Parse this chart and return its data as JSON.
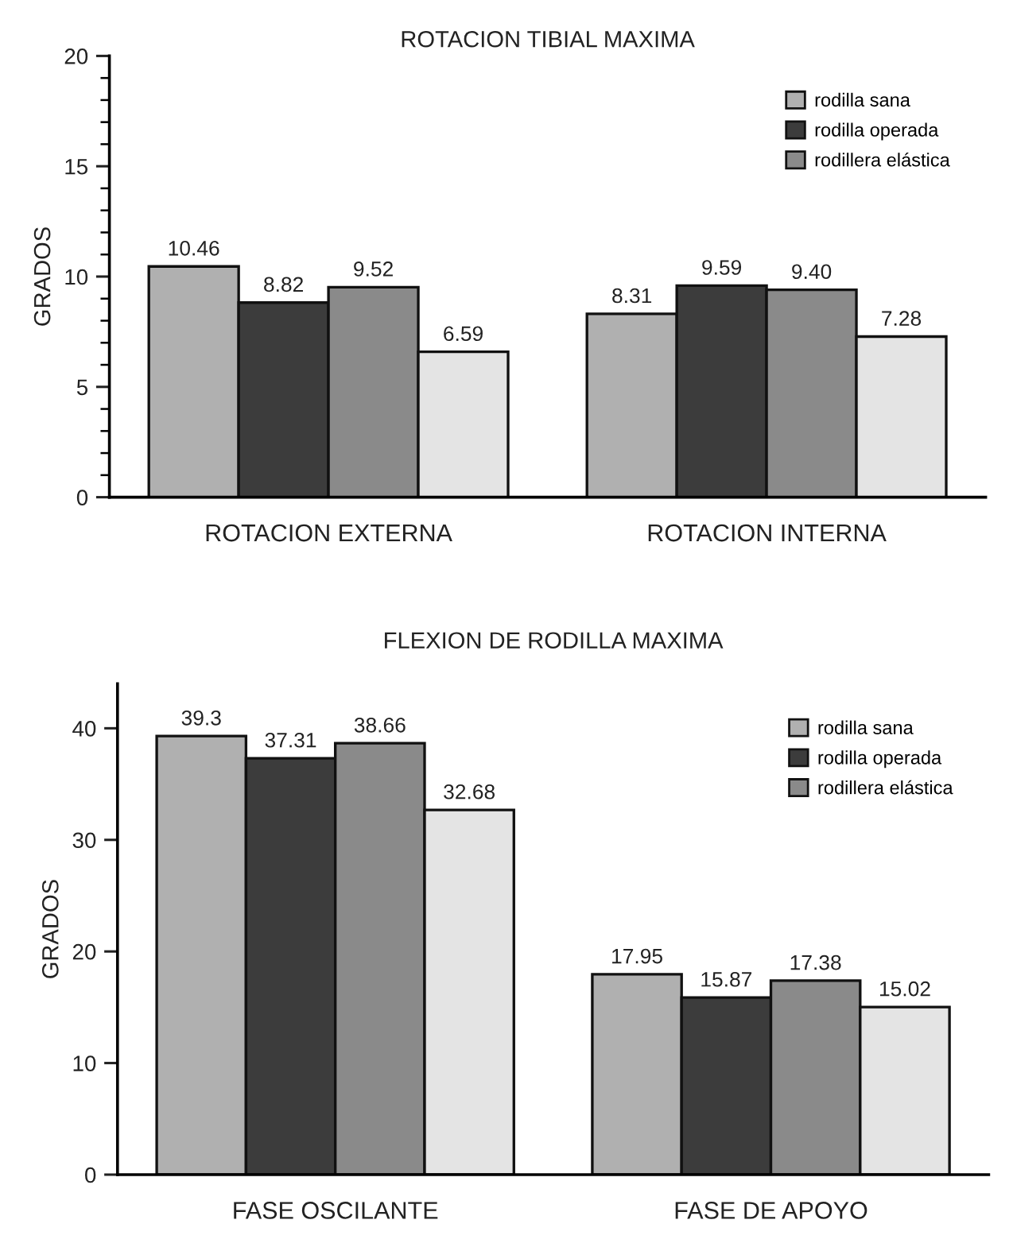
{
  "chart_data": [
    {
      "type": "bar",
      "title": "ROTACION TIBIAL MAXIMA",
      "ylabel": "GRADOS",
      "categories": [
        "ROTACION EXTERNA",
        "ROTACION INTERNA"
      ],
      "series": [
        {
          "name": "rodilla sana",
          "color": "#b0b0b0",
          "values": [
            10.46,
            8.31
          ],
          "value_labels": [
            "10.46",
            "8.31"
          ]
        },
        {
          "name": "rodilla operada",
          "color": "#3c3c3c",
          "values": [
            8.82,
            9.59
          ],
          "value_labels": [
            "8.82",
            "9.59"
          ]
        },
        {
          "name": "rodillera elástica",
          "color": "#8a8a8a",
          "values": [
            9.52,
            9.4
          ],
          "value_labels": [
            "9.52",
            "9.40"
          ]
        },
        {
          "color": "#e4e4e4",
          "values": [
            6.59,
            7.28
          ],
          "value_labels": [
            "6.59",
            "7.28"
          ]
        }
      ],
      "ylim": [
        0,
        20
      ],
      "yticks": [
        0,
        {
          "value": 1,
          "label": null
        },
        {
          "value": 2,
          "label": null
        },
        {
          "value": 3,
          "label": null
        },
        {
          "value": 4,
          "label": null
        },
        5,
        {
          "value": 6,
          "label": null
        },
        {
          "value": 7,
          "label": null
        },
        {
          "value": 8,
          "label": null
        },
        {
          "value": 9,
          "label": null
        },
        10,
        {
          "value": 11,
          "label": null
        },
        {
          "value": 12,
          "label": null
        },
        {
          "value": 13,
          "label": null
        },
        {
          "value": 14,
          "label": null
        },
        15,
        {
          "value": 16,
          "label": null
        },
        {
          "value": 17,
          "label": null
        },
        {
          "value": 18,
          "label": null
        },
        {
          "value": 19,
          "label": null
        },
        20
      ],
      "legend": "top right"
    },
    {
      "type": "bar",
      "title": "FLEXION DE RODILLA MAXIMA",
      "ylabel": "GRADOS",
      "categories": [
        "FASE OSCILANTE",
        "FASE DE APOYO"
      ],
      "series": [
        {
          "name": "rodilla sana",
          "color": "#b0b0b0",
          "values": [
            39.3,
            17.95
          ],
          "value_labels": [
            "39.3",
            "17.95"
          ]
        },
        {
          "name": "rodilla operada",
          "color": "#3c3c3c",
          "values": [
            37.31,
            15.87
          ],
          "value_labels": [
            "37.31",
            "15.87"
          ]
        },
        {
          "name": "rodillera elástica",
          "color": "#8a8a8a",
          "values": [
            38.66,
            17.38
          ],
          "value_labels": [
            "38.66",
            "17.38"
          ]
        },
        {
          "color": "#e4e4e4",
          "values": [
            32.68,
            15.02
          ],
          "value_labels": [
            "32.68",
            "15.02"
          ]
        }
      ],
      "ylim": [
        0,
        44
      ],
      "yticks": [
        0,
        10,
        20,
        30,
        40
      ],
      "legend": "top right"
    }
  ]
}
